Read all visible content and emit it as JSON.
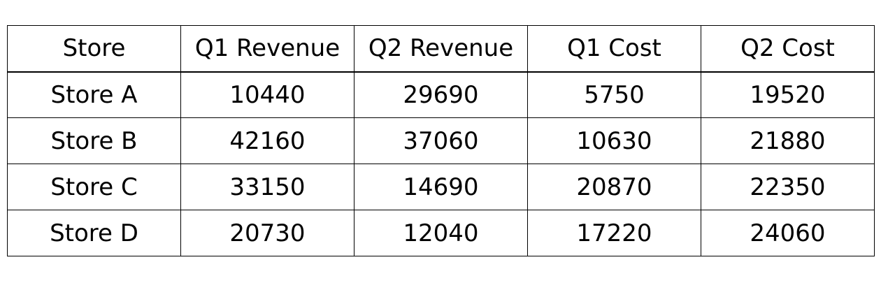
{
  "chart_data": {
    "type": "table",
    "columns": [
      "Store",
      "Q1 Revenue",
      "Q2 Revenue",
      "Q1 Cost",
      "Q2 Cost"
    ],
    "rows": [
      [
        "Store A",
        "10440",
        "29690",
        "5750",
        "19520"
      ],
      [
        "Store B",
        "42160",
        "37060",
        "10630",
        "21880"
      ],
      [
        "Store C",
        "33150",
        "14690",
        "20870",
        "22350"
      ],
      [
        "Store D",
        "20730",
        "12040",
        "17220",
        "24060"
      ]
    ]
  }
}
